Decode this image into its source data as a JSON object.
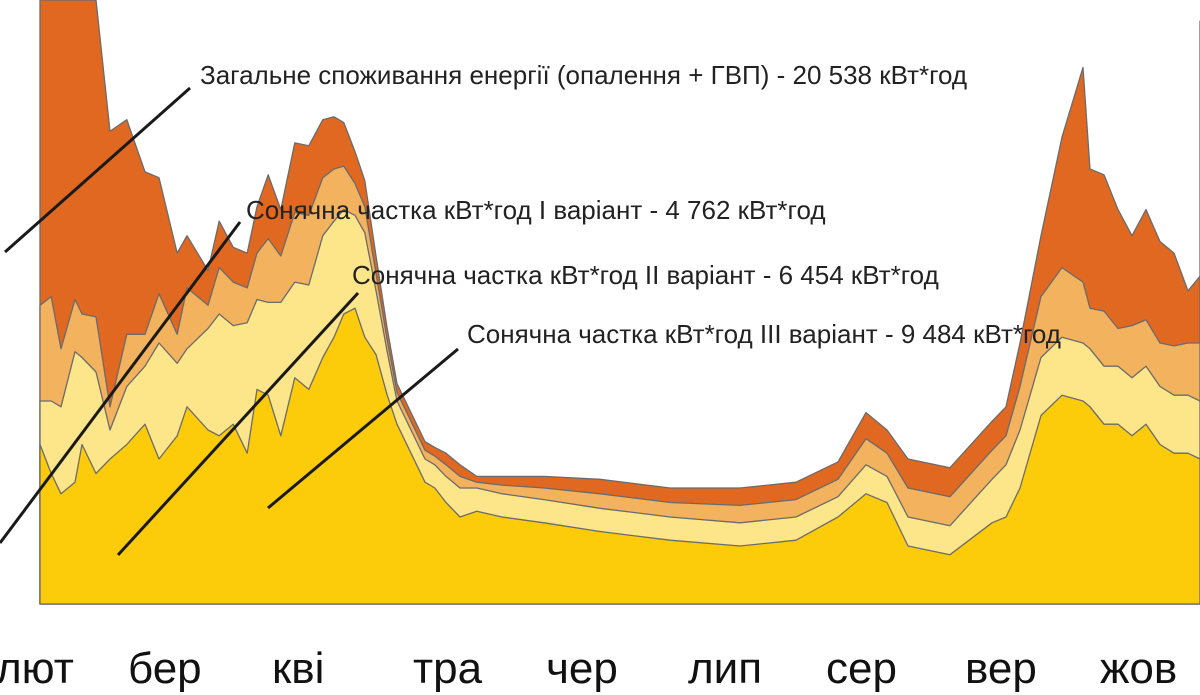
{
  "chart_data": {
    "type": "area",
    "categories": [
      "лют",
      "бер",
      "кві",
      "тра",
      "чер",
      "лип",
      "сер",
      "вер",
      "жов"
    ],
    "annotations": [
      "Загальне споживання енергії (опалення + ГВП) - 20 538 кВт*год",
      "Сонячна частка кВт*год I варіант - 4 762 кВт*год",
      "Сонячна частка кВт*год II варіант - 6 454 кВт*год",
      "Сонячна частка кВт*год III варіант - 9 484 кВт*год"
    ],
    "colors": {
      "total": "#e06820",
      "variant_1": "#f2b25e",
      "variant_2": "#fde589",
      "variant_3": "#fccb0a"
    },
    "x": [
      0,
      0.08,
      0.15,
      0.25,
      0.3,
      0.4,
      0.5,
      0.62,
      0.75,
      0.85,
      0.98,
      1.05,
      1.2,
      1.28,
      1.38,
      1.48,
      1.55,
      1.63,
      1.72,
      1.82,
      1.92,
      2.02,
      2.1,
      2.17,
      2.25,
      2.32,
      2.4,
      2.48,
      2.55,
      2.65,
      2.75,
      2.82,
      2.9,
      3.0,
      3.12,
      3.3,
      3.6,
      4.0,
      4.5,
      5.0,
      5.4,
      5.7,
      5.9,
      6.05,
      6.2,
      6.5,
      6.8,
      6.9,
      7.0,
      7.15,
      7.3,
      7.45,
      7.5,
      7.6,
      7.7,
      7.8,
      7.9,
      8.0,
      8.1,
      8.2,
      8.3,
      8.4,
      8.5,
      8.55
    ],
    "series": [
      {
        "values": [
          1.72,
          2.1,
          2.05,
          1.12,
          1.1,
          1.3,
          0.95,
          0.74,
          0.56,
          0.4,
          0.28,
          0.18,
          0.12,
          0.16,
          0.12,
          0.12,
          0.16,
          0.22,
          0.16,
          0.24,
          0.24,
          0.2,
          0.18,
          0.15,
          0.11,
          0.09,
          0.06,
          0.04,
          0.03,
          0.03,
          0.03,
          0.03,
          0.04,
          0.04,
          0.02,
          0.03,
          0.04,
          0.05,
          0.05,
          0.06,
          0.06,
          0.06,
          0.09,
          0.08,
          0.1,
          0.1,
          0.1,
          0.1,
          0.15,
          0.21,
          0.45,
          0.74,
          0.48,
          0.47,
          0.41,
          0.31,
          0.38,
          0.35,
          0.32,
          0.18,
          0.23,
          0.35,
          0.92,
          1.3
        ]
      },
      {
        "values": [
          0.33,
          0.36,
          0.2,
          0.18,
          0.15,
          0.19,
          0.08,
          0.18,
          0.11,
          0.17,
          0.1,
          0.21,
          0.08,
          0.16,
          0.15,
          0.12,
          0.16,
          0.22,
          0.16,
          0.24,
          0.24,
          0.2,
          0.18,
          0.15,
          0.11,
          0.09,
          0.06,
          0.04,
          0.03,
          0.03,
          0.03,
          0.03,
          0.04,
          0.04,
          0.02,
          0.03,
          0.04,
          0.05,
          0.05,
          0.06,
          0.06,
          0.06,
          0.09,
          0.08,
          0.1,
          0.1,
          0.1,
          0.1,
          0.15,
          0.21,
          0.24,
          0.21,
          0.14,
          0.19,
          0.13,
          0.18,
          0.16,
          0.15,
          0.17,
          0.18,
          0.2,
          0.14,
          0.1,
          0.08
        ]
      },
      {
        "values": [
          0.15,
          0.25,
          0.3,
          0.45,
          0.3,
          0.35,
          0.1,
          0.2,
          0.2,
          0.4,
          0.25,
          0.2,
          0.35,
          0.42,
          0.34,
          0.45,
          0.31,
          0.32,
          0.46,
          0.33,
          0.36,
          0.42,
          0.4,
          0.36,
          0.32,
          0.36,
          0.22,
          0.15,
          0.08,
          0.08,
          0.08,
          0.08,
          0.09,
          0.1,
          0.08,
          0.08,
          0.08,
          0.08,
          0.08,
          0.08,
          0.08,
          0.07,
          0.1,
          0.09,
          0.1,
          0.1,
          0.15,
          0.18,
          0.2,
          0.2,
          0.2,
          0.2,
          0.2,
          0.2,
          0.2,
          0.2,
          0.2,
          0.2,
          0.2,
          0.2,
          0.2,
          0.2,
          0.18,
          0.18
        ]
      },
      {
        "values": [
          0.55,
          0.45,
          0.38,
          0.42,
          0.55,
          0.45,
          0.5,
          0.55,
          0.62,
          0.5,
          0.58,
          0.68,
          0.6,
          0.58,
          0.62,
          0.52,
          0.74,
          0.72,
          0.58,
          0.78,
          0.74,
          0.85,
          0.92,
          1.0,
          1.02,
          0.92,
          0.86,
          0.72,
          0.62,
          0.52,
          0.42,
          0.4,
          0.35,
          0.3,
          0.32,
          0.3,
          0.28,
          0.25,
          0.22,
          0.2,
          0.22,
          0.3,
          0.38,
          0.35,
          0.2,
          0.17,
          0.28,
          0.3,
          0.4,
          0.65,
          0.72,
          0.7,
          0.68,
          0.62,
          0.62,
          0.58,
          0.62,
          0.55,
          0.52,
          0.52,
          0.5,
          0.46,
          0.45,
          0.45
        ]
      }
    ],
    "ylim": [
      0,
      2.3
    ],
    "grid": false,
    "legend": "none"
  }
}
